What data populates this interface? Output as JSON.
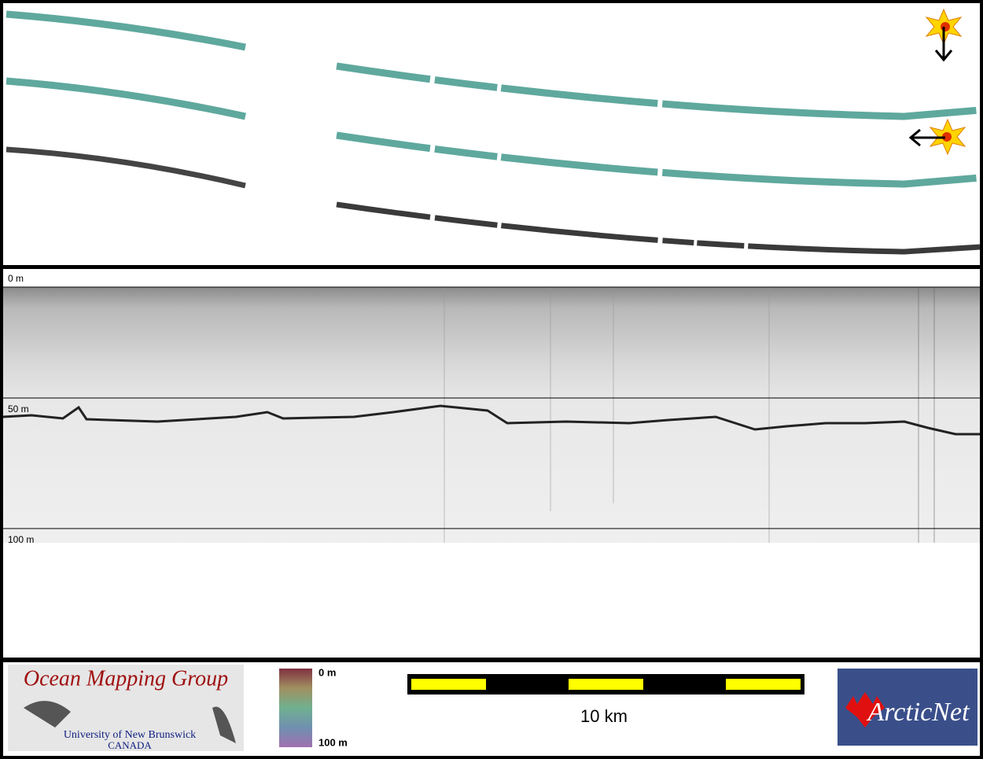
{
  "depth_axis": {
    "top": "0 m",
    "middle": "50 m",
    "bottom": "100 m"
  },
  "logo_left": {
    "title": "Ocean Mapping Group",
    "line1": "University of New Brunswick",
    "line2": "CANADA"
  },
  "colorbar": {
    "top": "0 m",
    "bottom": "100 m"
  },
  "scale_bar": {
    "label": "10 km"
  },
  "logo_right": {
    "title": "ArcticNet"
  }
}
